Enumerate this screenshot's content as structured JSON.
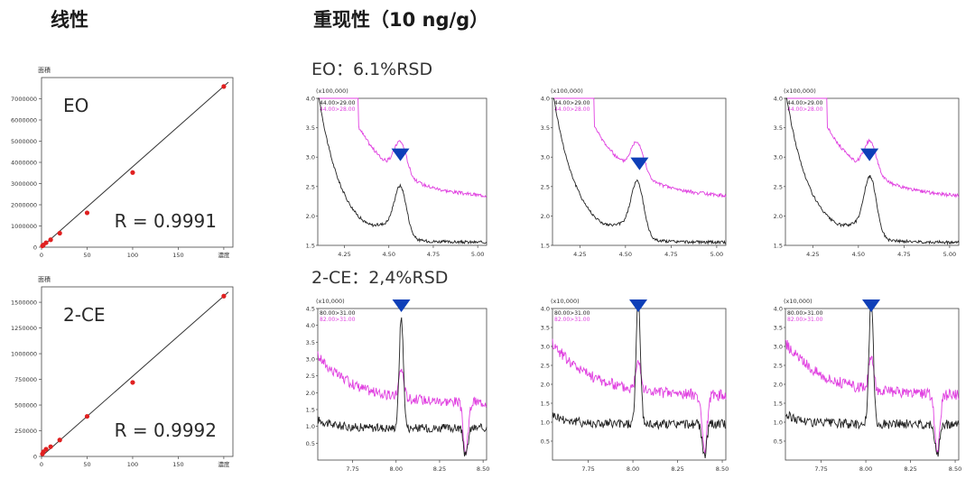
{
  "headings": {
    "linearity": "线性",
    "reproducibility": "重现性（10 ng/g）",
    "eo_rsd": "EO：6.1%RSD",
    "ce_rsd": "2-CE：2,4%RSD"
  },
  "colors": {
    "black_trace": "#222222",
    "magenta_trace": "#e040e0",
    "marker": "#0e3fb8",
    "point": "#e02020",
    "line": "#333333"
  },
  "chart_data": [
    {
      "type": "scatter",
      "title": "EO",
      "ylabel": "面積",
      "xlabel": "濃度",
      "annotation": "R = 0.9991",
      "xlim": [
        0,
        210
      ],
      "ylim": [
        0,
        8000000
      ],
      "xticks": [
        "0",
        "50",
        "100",
        "150",
        "濃度"
      ],
      "yticks": [
        "0",
        "1000000",
        "2000000",
        "3000000",
        "4000000",
        "5000000",
        "6000000",
        "7000000"
      ],
      "x": [
        1,
        2,
        5,
        10,
        20,
        50,
        100,
        200
      ],
      "y": [
        60000,
        100000,
        210000,
        350000,
        660000,
        1620000,
        3520000,
        7580000
      ],
      "fit": [
        [
          0,
          0
        ],
        [
          205,
          7780000
        ]
      ]
    },
    {
      "type": "scatter",
      "title": "2-CE",
      "ylabel": "面積",
      "xlabel": "濃度",
      "annotation": "R = 0.9992",
      "xlim": [
        0,
        210
      ],
      "ylim": [
        0,
        1650000
      ],
      "xticks": [
        "0",
        "50",
        "100",
        "150",
        "濃度"
      ],
      "yticks": [
        "0",
        "250000",
        "500000",
        "750000",
        "1000000",
        "1250000",
        "1500000"
      ],
      "x": [
        1,
        2,
        5,
        10,
        20,
        50,
        100,
        200
      ],
      "y": [
        25000,
        45000,
        70000,
        95000,
        160000,
        390000,
        720000,
        1560000
      ],
      "fit": [
        [
          0,
          0
        ],
        [
          205,
          1600000
        ]
      ]
    },
    {
      "type": "line",
      "group": "EO",
      "title": "",
      "scale_label": "(x100,000)",
      "series": [
        {
          "name": "44.00>29.00"
        },
        {
          "name": "44.00>28.00"
        }
      ],
      "xlim": [
        4.1,
        5.05
      ],
      "ylim": [
        1.5,
        4.0
      ],
      "xticks": [
        "4.25",
        "4.50",
        "4.75",
        "5.00"
      ],
      "yticks": [
        "1.5",
        "2.0",
        "2.5",
        "3.0",
        "3.5",
        "4.0"
      ]
    },
    {
      "type": "line",
      "group": "EO",
      "title": "",
      "scale_label": "(x100,000)",
      "series": [
        {
          "name": "44.00>29.00"
        },
        {
          "name": "44.00>28.00"
        }
      ],
      "xlim": [
        4.1,
        5.05
      ],
      "ylim": [
        1.5,
        4.0
      ],
      "xticks": [
        "4.25",
        "4.50",
        "4.75",
        "5.00"
      ],
      "yticks": [
        "1.5",
        "2.0",
        "2.5",
        "3.0",
        "3.5",
        "4.0"
      ]
    },
    {
      "type": "line",
      "group": "EO",
      "title": "",
      "scale_label": "(x100,000)",
      "series": [
        {
          "name": "44.00>29.00"
        },
        {
          "name": "44.00>28.00"
        }
      ],
      "xlim": [
        4.1,
        5.05
      ],
      "ylim": [
        1.5,
        4.0
      ],
      "xticks": [
        "4.25",
        "4.50",
        "4.75",
        "5.00"
      ],
      "yticks": [
        "1.5",
        "2.0",
        "2.5",
        "3.0",
        "3.5",
        "4.0"
      ]
    },
    {
      "type": "line",
      "group": "2-CE",
      "title": "",
      "scale_label": "(x10,000)",
      "series": [
        {
          "name": "80.00>31.00"
        },
        {
          "name": "82.00>31.00"
        }
      ],
      "xlim": [
        7.55,
        8.52
      ],
      "ylim": [
        0,
        4.5
      ],
      "xticks": [
        "7.75",
        "8.00",
        "8.25",
        "8.50"
      ],
      "yticks": [
        "0.5",
        "1.0",
        "1.5",
        "2.0",
        "2.5",
        "3.0",
        "3.5",
        "4.0",
        "4.5"
      ]
    },
    {
      "type": "line",
      "group": "2-CE",
      "title": "",
      "scale_label": "(x10,000)",
      "series": [
        {
          "name": "80.00>31.00"
        },
        {
          "name": "82.00>31.00"
        }
      ],
      "xlim": [
        7.55,
        8.52
      ],
      "ylim": [
        0,
        4.0
      ],
      "xticks": [
        "7.75",
        "8.00",
        "8.25",
        "8.50"
      ],
      "yticks": [
        "0.5",
        "1.0",
        "1.5",
        "2.0",
        "2.5",
        "3.0",
        "3.5",
        "4.0"
      ]
    },
    {
      "type": "line",
      "group": "2-CE",
      "title": "",
      "scale_label": "(x10,000)",
      "series": [
        {
          "name": "80.00>31.00"
        },
        {
          "name": "82.00>31.00"
        }
      ],
      "xlim": [
        7.55,
        8.52
      ],
      "ylim": [
        0,
        4.0
      ],
      "xticks": [
        "7.75",
        "8.00",
        "8.25",
        "8.50"
      ],
      "yticks": [
        "0.5",
        "1.0",
        "1.5",
        "2.0",
        "2.5",
        "3.0",
        "3.5",
        "4.0"
      ]
    }
  ]
}
